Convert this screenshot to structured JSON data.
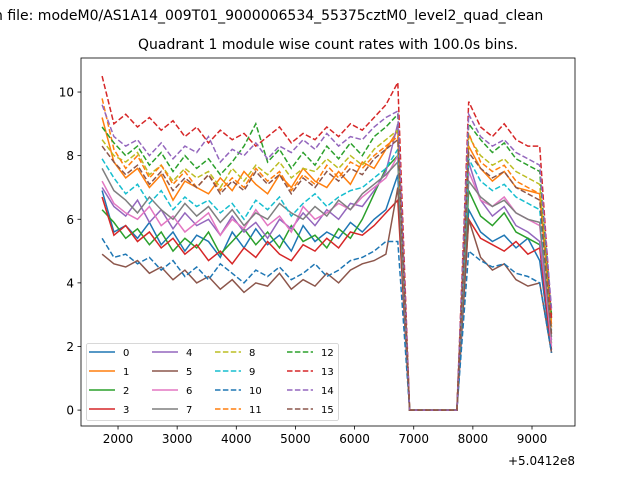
{
  "chart_data": {
    "type": "line",
    "suptitle": "n file: modeM0/AS1A14_009T01_9000006534_55375cztM0_level2_quad_clean",
    "title": "Quadrant 1 module wise count rates with 100.0s bins.",
    "xlabel": "",
    "ylabel": "",
    "x_offset_text": "+5.0412e8",
    "xlim": [
      1374,
      9727
    ],
    "ylim": [
      -0.5,
      11.07
    ],
    "xticks": [
      2000,
      3000,
      4000,
      5000,
      6000,
      7000,
      8000,
      9000
    ],
    "xtick_labels": [
      "2000",
      "3000",
      "4000",
      "5000",
      "6000",
      "7000",
      "8000",
      "9000"
    ],
    "yticks": [
      0,
      2,
      4,
      6,
      8,
      10
    ],
    "ytick_labels": [
      "0",
      "2",
      "4",
      "6",
      "8",
      "10"
    ],
    "grid": false,
    "legend_placement": "lower-left",
    "legend_columns": 4,
    "x": [
      1730,
      1930,
      2130,
      2330,
      2530,
      2730,
      2930,
      3130,
      3330,
      3530,
      3730,
      3930,
      4130,
      4330,
      4530,
      4730,
      4930,
      5130,
      5330,
      5530,
      5730,
      5930,
      6130,
      6330,
      6530,
      6730,
      6930,
      7130,
      7330,
      7530,
      7730,
      7930,
      8130,
      8330,
      8530,
      8730,
      8930,
      9130,
      9330
    ],
    "series": [
      {
        "name": "0",
        "color": "#1f77b4",
        "dashed": false,
        "values": [
          6.9,
          5.6,
          5.8,
          5.4,
          5.9,
          5.2,
          5.6,
          5.0,
          5.5,
          5.3,
          4.8,
          5.6,
          5.1,
          5.7,
          5.2,
          5.5,
          5.0,
          5.8,
          5.3,
          5.6,
          5.4,
          5.9,
          5.6,
          6.0,
          6.3,
          7.4,
          0,
          0,
          0,
          0,
          0,
          6.3,
          5.6,
          5.3,
          5.5,
          5.1,
          5.4,
          4.7,
          1.8
        ]
      },
      {
        "name": "1",
        "color": "#ff7f0e",
        "dashed": false,
        "values": [
          9.2,
          7.8,
          7.3,
          7.6,
          7.0,
          7.4,
          6.6,
          7.2,
          7.0,
          6.8,
          7.3,
          6.9,
          7.5,
          7.1,
          6.8,
          7.4,
          7.0,
          7.6,
          7.2,
          7.0,
          7.5,
          7.1,
          7.8,
          7.6,
          8.2,
          8.8,
          0,
          0,
          0,
          0,
          0,
          8.3,
          7.6,
          7.2,
          7.5,
          7.0,
          6.9,
          6.8,
          2.6
        ]
      },
      {
        "name": "2",
        "color": "#2ca02c",
        "dashed": false,
        "values": [
          6.3,
          5.9,
          5.4,
          5.7,
          5.2,
          5.6,
          5.0,
          5.4,
          5.1,
          5.6,
          4.9,
          5.3,
          5.7,
          5.2,
          5.6,
          5.1,
          5.8,
          5.3,
          5.5,
          5.1,
          5.7,
          5.4,
          6.0,
          6.8,
          7.6,
          8.0,
          0,
          0,
          0,
          0,
          0,
          6.9,
          6.1,
          5.8,
          6.2,
          5.6,
          5.4,
          5.2,
          2.1
        ]
      },
      {
        "name": "3",
        "color": "#d62728",
        "dashed": false,
        "values": [
          6.7,
          5.5,
          5.8,
          5.3,
          5.6,
          5.1,
          5.4,
          4.9,
          5.2,
          4.7,
          5.0,
          4.6,
          5.1,
          4.8,
          5.3,
          4.9,
          4.7,
          5.2,
          5.0,
          5.4,
          5.1,
          5.6,
          5.5,
          5.8,
          6.2,
          6.6,
          0,
          0,
          0,
          0,
          0,
          6.0,
          5.4,
          5.2,
          5.0,
          5.3,
          4.9,
          5.1,
          1.9
        ]
      },
      {
        "name": "4",
        "color": "#9467bd",
        "dashed": false,
        "values": [
          7.0,
          6.4,
          6.1,
          6.6,
          5.9,
          6.3,
          5.7,
          6.2,
          5.8,
          6.0,
          5.5,
          6.1,
          5.6,
          5.9,
          5.4,
          6.0,
          5.7,
          6.2,
          5.8,
          6.3,
          6.0,
          6.5,
          6.4,
          6.9,
          7.5,
          9.0,
          0,
          0,
          0,
          0,
          0,
          7.8,
          6.6,
          6.1,
          6.4,
          5.8,
          5.6,
          5.3,
          2.2
        ]
      },
      {
        "name": "5",
        "color": "#8c564b",
        "dashed": false,
        "values": [
          4.9,
          4.6,
          4.5,
          4.7,
          4.3,
          4.5,
          4.1,
          4.4,
          4.0,
          4.2,
          3.8,
          4.1,
          3.7,
          4.0,
          3.9,
          4.3,
          3.8,
          4.1,
          3.9,
          4.3,
          4.0,
          4.4,
          4.6,
          4.7,
          4.9,
          7.0,
          0,
          0,
          0,
          0,
          0,
          6.0,
          4.8,
          4.4,
          4.6,
          4.1,
          3.9,
          4.0,
          1.8
        ]
      },
      {
        "name": "6",
        "color": "#e377c2",
        "dashed": false,
        "values": [
          7.2,
          6.5,
          6.2,
          6.0,
          6.4,
          5.8,
          6.1,
          5.6,
          5.9,
          6.2,
          5.5,
          6.0,
          5.7,
          6.3,
          5.8,
          6.1,
          5.6,
          6.4,
          6.0,
          6.2,
          6.5,
          6.3,
          6.7,
          7.0,
          7.3,
          8.0,
          0,
          0,
          0,
          0,
          0,
          7.5,
          6.6,
          6.4,
          6.7,
          6.2,
          6.0,
          5.8,
          2.0
        ]
      },
      {
        "name": "7",
        "color": "#7f7f7f",
        "dashed": false,
        "values": [
          7.6,
          6.9,
          6.6,
          6.2,
          6.7,
          6.3,
          6.0,
          6.5,
          6.1,
          6.4,
          5.9,
          6.3,
          5.8,
          6.2,
          6.0,
          6.5,
          6.2,
          6.0,
          6.4,
          6.1,
          6.6,
          6.3,
          6.8,
          7.1,
          7.4,
          7.8,
          0,
          0,
          0,
          0,
          0,
          7.2,
          6.7,
          6.4,
          6.6,
          6.2,
          6.0,
          5.9,
          2.3
        ]
      },
      {
        "name": "8",
        "color": "#bcbd22",
        "dashed": true,
        "values": [
          8.5,
          8.0,
          7.8,
          8.1,
          7.4,
          7.7,
          7.2,
          7.6,
          7.3,
          7.5,
          7.0,
          7.6,
          7.2,
          7.7,
          7.4,
          7.8,
          7.3,
          7.6,
          7.5,
          7.9,
          7.6,
          8.0,
          7.7,
          8.2,
          8.5,
          8.8,
          0,
          0,
          0,
          0,
          0,
          8.6,
          8.0,
          7.7,
          7.9,
          7.5,
          7.3,
          7.1,
          2.8
        ]
      },
      {
        "name": "9",
        "color": "#17becf",
        "dashed": true,
        "values": [
          7.9,
          7.3,
          6.8,
          7.1,
          6.5,
          6.9,
          6.3,
          6.7,
          6.4,
          6.6,
          6.2,
          6.5,
          6.0,
          6.6,
          6.3,
          6.7,
          6.1,
          6.5,
          6.8,
          6.4,
          6.7,
          6.9,
          7.0,
          7.3,
          7.6,
          8.2,
          0,
          0,
          0,
          0,
          0,
          7.9,
          7.2,
          6.9,
          7.1,
          6.7,
          6.5,
          6.3,
          2.5
        ]
      },
      {
        "name": "10",
        "color": "#1f77b4",
        "dashed": true,
        "values": [
          5.4,
          4.8,
          4.9,
          4.6,
          4.8,
          4.4,
          4.7,
          4.2,
          4.5,
          4.1,
          4.6,
          4.3,
          4.0,
          4.4,
          4.2,
          4.5,
          4.1,
          4.3,
          4.6,
          4.2,
          4.4,
          4.7,
          4.8,
          5.0,
          5.3,
          5.3,
          0,
          0,
          0,
          0,
          0,
          5.0,
          4.7,
          4.5,
          4.6,
          4.3,
          4.2,
          4.0,
          1.8
        ]
      },
      {
        "name": "11",
        "color": "#ff7f0e",
        "dashed": true,
        "values": [
          9.8,
          8.2,
          7.6,
          8.0,
          7.3,
          7.7,
          7.1,
          7.5,
          7.0,
          7.4,
          6.9,
          7.3,
          7.0,
          7.6,
          7.2,
          7.5,
          6.9,
          7.4,
          7.1,
          7.7,
          7.3,
          7.8,
          7.6,
          8.0,
          8.3,
          8.6,
          0,
          0,
          0,
          0,
          0,
          8.7,
          7.8,
          7.5,
          7.7,
          7.2,
          7.0,
          6.8,
          2.7
        ]
      },
      {
        "name": "12",
        "color": "#2ca02c",
        "dashed": true,
        "values": [
          8.9,
          8.4,
          8.0,
          8.3,
          7.7,
          8.1,
          7.5,
          8.0,
          7.6,
          7.9,
          7.4,
          7.8,
          8.3,
          9.0,
          7.8,
          8.2,
          7.6,
          8.1,
          7.7,
          8.3,
          7.9,
          8.4,
          8.0,
          8.6,
          8.9,
          9.3,
          0,
          0,
          0,
          0,
          0,
          9.0,
          8.5,
          8.1,
          8.4,
          7.9,
          7.7,
          7.5,
          3.0
        ]
      },
      {
        "name": "13",
        "color": "#d62728",
        "dashed": true,
        "values": [
          10.5,
          9.0,
          9.3,
          8.9,
          9.2,
          8.8,
          9.1,
          8.6,
          8.9,
          8.4,
          8.8,
          8.5,
          8.7,
          8.3,
          8.6,
          8.9,
          8.4,
          8.7,
          8.5,
          8.9,
          8.6,
          9.0,
          8.8,
          9.2,
          9.6,
          10.3,
          0,
          0,
          0,
          0,
          0,
          9.7,
          8.9,
          8.6,
          9.0,
          8.5,
          8.3,
          8.3,
          2.9
        ]
      },
      {
        "name": "14",
        "color": "#9467bd",
        "dashed": true,
        "values": [
          9.6,
          8.6,
          8.3,
          8.5,
          8.0,
          8.4,
          7.9,
          8.3,
          8.1,
          8.6,
          7.8,
          8.2,
          8.0,
          8.4,
          7.9,
          8.3,
          8.1,
          8.5,
          8.2,
          8.7,
          8.3,
          8.6,
          8.5,
          8.9,
          9.2,
          9.4,
          0,
          0,
          0,
          0,
          0,
          9.3,
          8.6,
          8.3,
          8.5,
          8.1,
          7.9,
          7.7,
          3.2
        ]
      },
      {
        "name": "15",
        "color": "#8c564b",
        "dashed": true,
        "values": [
          8.3,
          7.8,
          7.4,
          7.7,
          7.1,
          7.5,
          6.9,
          7.3,
          7.0,
          7.4,
          6.8,
          7.2,
          6.9,
          7.5,
          7.1,
          7.4,
          6.8,
          7.3,
          7.0,
          7.5,
          7.2,
          7.6,
          7.4,
          7.9,
          8.2,
          8.5,
          0,
          0,
          0,
          0,
          0,
          8.1,
          7.6,
          7.3,
          7.5,
          7.0,
          6.8,
          6.6,
          2.4
        ]
      }
    ]
  }
}
